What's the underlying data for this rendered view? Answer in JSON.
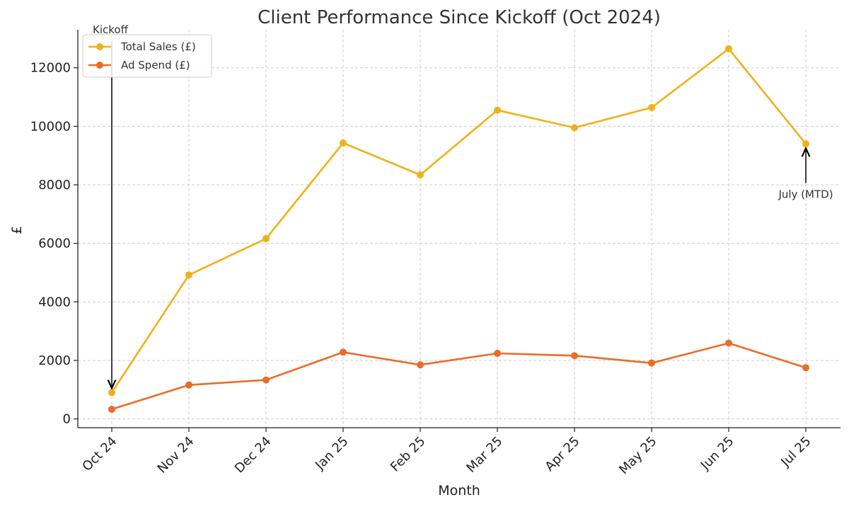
{
  "chart_data": {
    "type": "line",
    "title": "Client Performance Since Kickoff (Oct 2024)",
    "xlabel": "Month",
    "ylabel": "£",
    "categories": [
      "Oct 24",
      "Nov 24",
      "Dec 24",
      "Jan 25",
      "Feb 25",
      "Mar 25",
      "Apr 25",
      "May 25",
      "Jun 25",
      "Jul 25"
    ],
    "ylim": [
      -300,
      13300
    ],
    "yticks": [
      0,
      2000,
      4000,
      6000,
      8000,
      10000,
      12000
    ],
    "grid": true,
    "legend_position": "top-left",
    "series": [
      {
        "name": "Total Sales (£)",
        "color": "#f0b118",
        "values": [
          900,
          4920,
          6160,
          9430,
          8340,
          10550,
          9950,
          10640,
          12650,
          9400
        ]
      },
      {
        "name": "Ad Spend (£)",
        "color": "#ea6c29",
        "values": [
          330,
          1160,
          1330,
          2280,
          1850,
          2240,
          2160,
          1910,
          2590,
          1750
        ]
      }
    ],
    "annotations": [
      {
        "text": "Kickoff",
        "category": "Oct 24",
        "series": 0,
        "y_text": 13250
      },
      {
        "text": "July (MTD)",
        "category": "Jul 25",
        "series": 0,
        "y_text": 7700
      }
    ]
  }
}
